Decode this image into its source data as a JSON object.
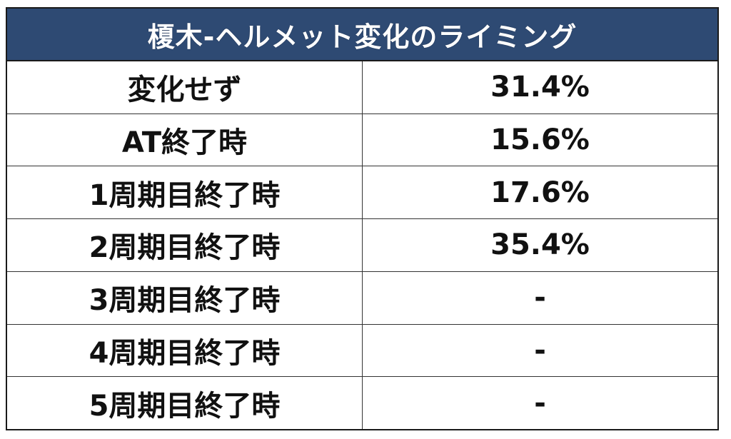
{
  "table": {
    "title": "榎木-ヘルメット変化のライミング",
    "rows": [
      {
        "label": "変化せず",
        "value": "31.4%"
      },
      {
        "label": "AT終了時",
        "value": "15.6%"
      },
      {
        "label": "1周期目終了時",
        "value": "17.6%"
      },
      {
        "label": "2周期目終了時",
        "value": "35.4%"
      },
      {
        "label": "3周期目終了時",
        "value": "-"
      },
      {
        "label": "4周期目終了時",
        "value": "-"
      },
      {
        "label": "5周期目終了時",
        "value": "-"
      }
    ]
  },
  "colors": {
    "header_background": "#2e4a73",
    "header_text": "#ffffff",
    "border": "#1a1a1a",
    "cell_text": "#111111"
  }
}
